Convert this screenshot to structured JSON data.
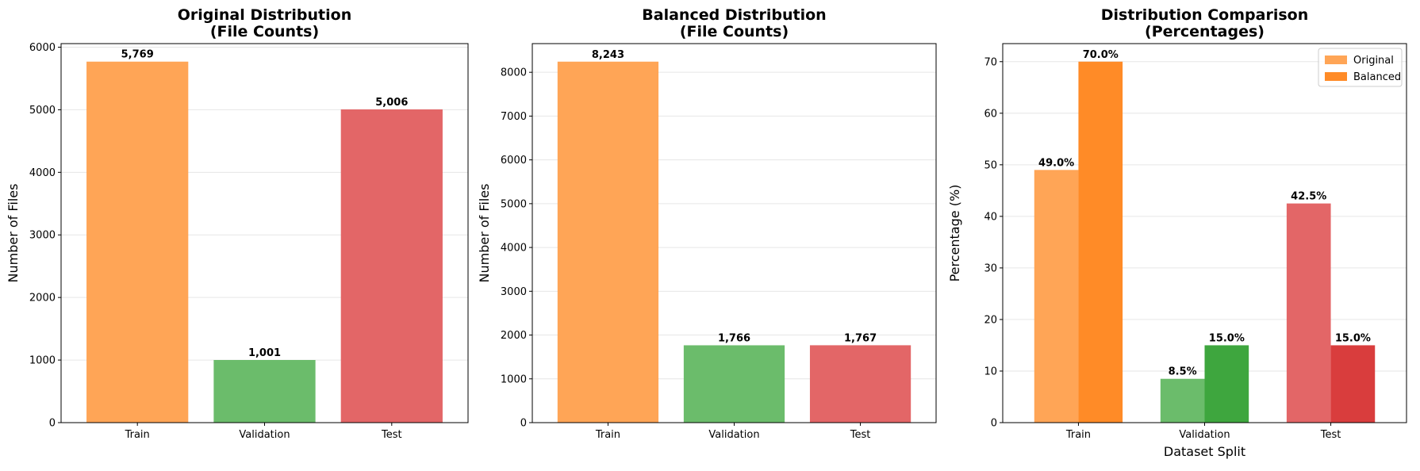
{
  "chart_data": [
    {
      "type": "bar",
      "title": "Original Distribution\n(File Counts)",
      "xlabel": "",
      "ylabel": "Number of Files",
      "categories": [
        "Train",
        "Validation",
        "Test"
      ],
      "values": [
        5769,
        1001,
        5006
      ],
      "data_labels": [
        "5,769",
        "1,001",
        "5,006"
      ],
      "colors": [
        "#ffa556",
        "#6bbc6b",
        "#e36667"
      ],
      "ylim": [
        0,
        6057
      ],
      "yticks": [
        0,
        1000,
        2000,
        3000,
        4000,
        5000,
        6000
      ],
      "grid": "y"
    },
    {
      "type": "bar",
      "title": "Balanced Distribution\n(File Counts)",
      "xlabel": "",
      "ylabel": "Number of Files",
      "categories": [
        "Train",
        "Validation",
        "Test"
      ],
      "values": [
        8243,
        1766,
        1767
      ],
      "data_labels": [
        "8,243",
        "1,766",
        "1,767"
      ],
      "colors": [
        "#ffa556",
        "#6bbc6b",
        "#e36667"
      ],
      "ylim": [
        0,
        8655
      ],
      "yticks": [
        0,
        1000,
        2000,
        3000,
        4000,
        5000,
        6000,
        7000,
        8000
      ],
      "grid": "y"
    },
    {
      "type": "bar",
      "title": "Distribution Comparison\n(Percentages)",
      "xlabel": "Dataset Split",
      "ylabel": "Percentage (%)",
      "categories": [
        "Train",
        "Validation",
        "Test"
      ],
      "series": [
        {
          "name": "Original",
          "values": [
            49.0,
            8.5,
            42.5
          ],
          "data_labels": [
            "49.0%",
            "8.5%",
            "42.5%"
          ],
          "colors": [
            "#ffa556",
            "#6bbc6b",
            "#e36667"
          ],
          "legend_color": "#ffa556"
        },
        {
          "name": "Balanced",
          "values": [
            70.0,
            15.0,
            15.0
          ],
          "data_labels": [
            "70.0%",
            "15.0%",
            "15.0%"
          ],
          "colors": [
            "#ff8b27",
            "#3ea63e",
            "#d93d3d"
          ],
          "legend_color": "#ff8b27"
        }
      ],
      "ylim": [
        0,
        73.5
      ],
      "yticks": [
        0,
        10,
        20,
        30,
        40,
        50,
        60,
        70
      ],
      "grid": "y",
      "legend_position": "top-right"
    }
  ]
}
